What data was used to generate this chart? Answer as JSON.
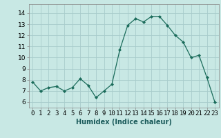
{
  "x": [
    0,
    1,
    2,
    3,
    4,
    5,
    6,
    7,
    8,
    9,
    10,
    11,
    12,
    13,
    14,
    15,
    16,
    17,
    18,
    19,
    20,
    21,
    22,
    23
  ],
  "y": [
    7.8,
    7.0,
    7.3,
    7.4,
    7.0,
    7.3,
    8.1,
    7.5,
    6.4,
    7.0,
    7.6,
    10.7,
    12.9,
    13.5,
    13.2,
    13.7,
    13.7,
    12.9,
    12.0,
    11.4,
    10.0,
    10.2,
    8.2,
    6.0
  ],
  "line_color": "#1a6b5a",
  "marker_color": "#1a6b5a",
  "bg_color": "#c8e8e4",
  "grid_color": "#a8cccc",
  "xlabel": "Humidex (Indice chaleur)",
  "xlabel_fontsize": 7,
  "ylabel_ticks": [
    6,
    7,
    8,
    9,
    10,
    11,
    12,
    13,
    14
  ],
  "xtick_labels": [
    "0",
    "1",
    "2",
    "3",
    "4",
    "5",
    "6",
    "7",
    "8",
    "9",
    "10",
    "11",
    "12",
    "13",
    "14",
    "15",
    "16",
    "17",
    "18",
    "19",
    "20",
    "21",
    "22",
    "23"
  ],
  "ylim": [
    5.5,
    14.8
  ],
  "xlim": [
    -0.5,
    23.5
  ],
  "tick_fontsize": 6.5
}
